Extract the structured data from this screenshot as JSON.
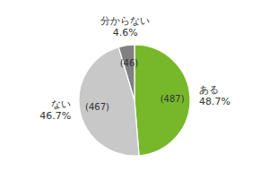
{
  "chart_data": {
    "type": "pie",
    "categories": [
      "ある",
      "ない",
      "分からない"
    ],
    "values": [
      48.7,
      46.7,
      4.6
    ],
    "value_labels": [
      "48.7%",
      "46.7%",
      "4.6%"
    ],
    "counts": [
      487,
      467,
      46
    ],
    "count_labels": [
      "(487)",
      "(467)",
      "(46)"
    ],
    "colors": [
      "#76b82a",
      "#c8c8c8",
      "#808080"
    ],
    "data_labels": true
  }
}
